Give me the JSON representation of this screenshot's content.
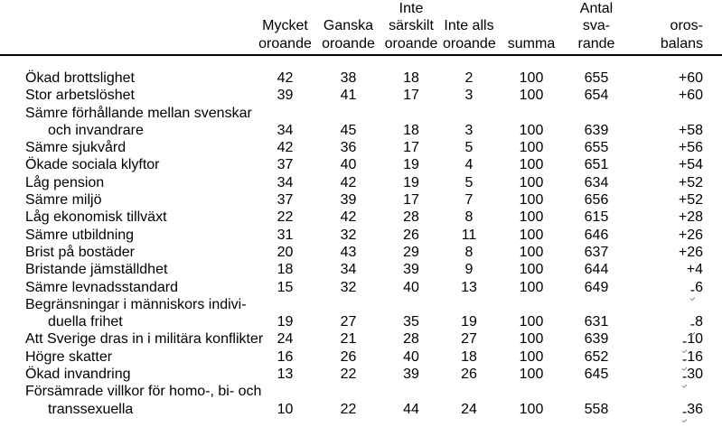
{
  "document": {
    "background": "#ffffff",
    "text_color": "#000000",
    "rule_color": "#000000",
    "squiggle_color": "#3fa33f"
  },
  "table": {
    "columns": [
      {
        "id": "label",
        "header_lines": []
      },
      {
        "id": "mycket_oroande",
        "header_lines": [
          "Mycket",
          "oroande"
        ]
      },
      {
        "id": "ganska_oroande",
        "header_lines": [
          "Ganska",
          "oroande"
        ]
      },
      {
        "id": "inte_sarskilt_oroande",
        "header_lines": [
          "Inte",
          "särskilt",
          "oroande"
        ]
      },
      {
        "id": "inte_alls_oroande",
        "header_lines": [
          "Inte alls",
          "oroande"
        ]
      },
      {
        "id": "summa",
        "header_lines": [
          "summa"
        ]
      },
      {
        "id": "antal_svarande",
        "header_lines": [
          "Antal",
          "sva-",
          "rande"
        ]
      },
      {
        "id": "orosbalans",
        "header_lines": [
          "oros-",
          "balans"
        ]
      }
    ],
    "rows": [
      {
        "label_lines": [
          "Ökad brottslighet"
        ],
        "values": [
          "42",
          "38",
          "18",
          "2",
          "100",
          "655",
          "+60"
        ]
      },
      {
        "label_lines": [
          "Stor arbetslöshet"
        ],
        "values": [
          "39",
          "41",
          "17",
          "3",
          "100",
          "654",
          "+60"
        ]
      },
      {
        "label_lines": [
          "Sämre förhållande mellan svenskar",
          "och invandrare"
        ],
        "values": [
          "34",
          "45",
          "18",
          "3",
          "100",
          "639",
          "+58"
        ]
      },
      {
        "label_lines": [
          "Sämre sjukvård"
        ],
        "values": [
          "42",
          "36",
          "17",
          "5",
          "100",
          "655",
          "+56"
        ]
      },
      {
        "label_lines": [
          "Ökade sociala klyftor"
        ],
        "values": [
          "37",
          "40",
          "19",
          "4",
          "100",
          "651",
          "+54"
        ]
      },
      {
        "label_lines": [
          "Låg pension"
        ],
        "values": [
          "34",
          "42",
          "19",
          "5",
          "100",
          "634",
          "+52"
        ]
      },
      {
        "label_lines": [
          "Sämre miljö"
        ],
        "values": [
          "37",
          "39",
          "17",
          "7",
          "100",
          "656",
          "+52"
        ]
      },
      {
        "label_lines": [
          "Låg ekonomisk tillväxt"
        ],
        "values": [
          "22",
          "42",
          "28",
          "8",
          "100",
          "615",
          "+28"
        ]
      },
      {
        "label_lines": [
          "Sämre utbildning"
        ],
        "values": [
          "31",
          "32",
          "26",
          "11",
          "100",
          "646",
          "+26"
        ]
      },
      {
        "label_lines": [
          "Brist på bostäder"
        ],
        "values": [
          "20",
          "43",
          "29",
          "8",
          "100",
          "637",
          "+26"
        ]
      },
      {
        "label_lines": [
          "Bristande jämställdhet"
        ],
        "values": [
          "18",
          "34",
          "39",
          "9",
          "100",
          "644",
          "+4"
        ]
      },
      {
        "label_lines": [
          "Sämre levnadsstandard"
        ],
        "values": [
          "15",
          "32",
          "40",
          "13",
          "100",
          "649",
          "-6"
        ]
      },
      {
        "label_lines": [
          "Begränsningar i människors indivi-",
          "duella frihet"
        ],
        "values": [
          "19",
          "27",
          "35",
          "19",
          "100",
          "631",
          "-8"
        ]
      },
      {
        "label_lines": [
          "Att Sverige dras in i militära konflikter"
        ],
        "values": [
          "24",
          "21",
          "28",
          "27",
          "100",
          "639",
          "-10"
        ]
      },
      {
        "label_lines": [
          "Högre skatter"
        ],
        "values": [
          "16",
          "26",
          "40",
          "18",
          "100",
          "652",
          "-16"
        ]
      },
      {
        "label_lines": [
          "Ökad invandring"
        ],
        "values": [
          "13",
          "22",
          "39",
          "26",
          "100",
          "645",
          "-30"
        ]
      },
      {
        "label_lines": [
          "Försämrade villkor för homo-, bi- och",
          "transsexuella"
        ],
        "values": [
          "10",
          "22",
          "44",
          "24",
          "100",
          "558",
          "-36"
        ]
      }
    ]
  }
}
